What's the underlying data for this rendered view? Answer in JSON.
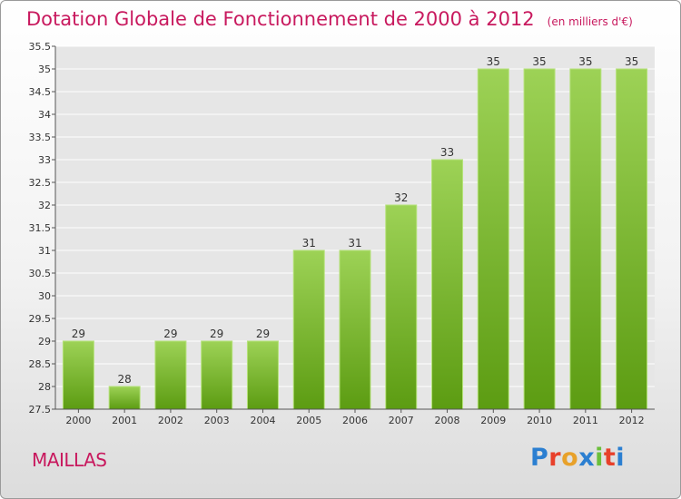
{
  "title": "Dotation Globale de Fonctionnement de 2000 à 2012",
  "unit": "(en milliers d'€)",
  "commune": "MAILLAS",
  "brand": {
    "letters": [
      "P",
      "r",
      "o",
      "x",
      "i",
      "t",
      "i"
    ],
    "colors": [
      "#2b7fd1",
      "#e8402a",
      "#e8a12a",
      "#2b7fd1",
      "#6abf3a",
      "#e8402a",
      "#2b7fd1"
    ]
  },
  "colors": {
    "title": "#c8195e",
    "bar_top": "#9dd256",
    "bar_bottom": "#5c9c12",
    "axis": "#555555",
    "grid": "#ffffff"
  },
  "chart_data": {
    "type": "bar",
    "categories": [
      "2000",
      "2001",
      "2002",
      "2003",
      "2004",
      "2005",
      "2006",
      "2007",
      "2008",
      "2009",
      "2010",
      "2011",
      "2012"
    ],
    "values": [
      29,
      28,
      29,
      29,
      29,
      31,
      31,
      32,
      33,
      35,
      35,
      35,
      35
    ],
    "ylim": [
      27.5,
      35.5
    ],
    "ytick_step": 0.5,
    "yticks": [
      "27.5",
      "28",
      "28.5",
      "29",
      "29.5",
      "30",
      "30.5",
      "31",
      "31.5",
      "32",
      "32.5",
      "33",
      "33.5",
      "34",
      "34.5",
      "35",
      "35.5"
    ],
    "grid": true,
    "legend": "none"
  }
}
